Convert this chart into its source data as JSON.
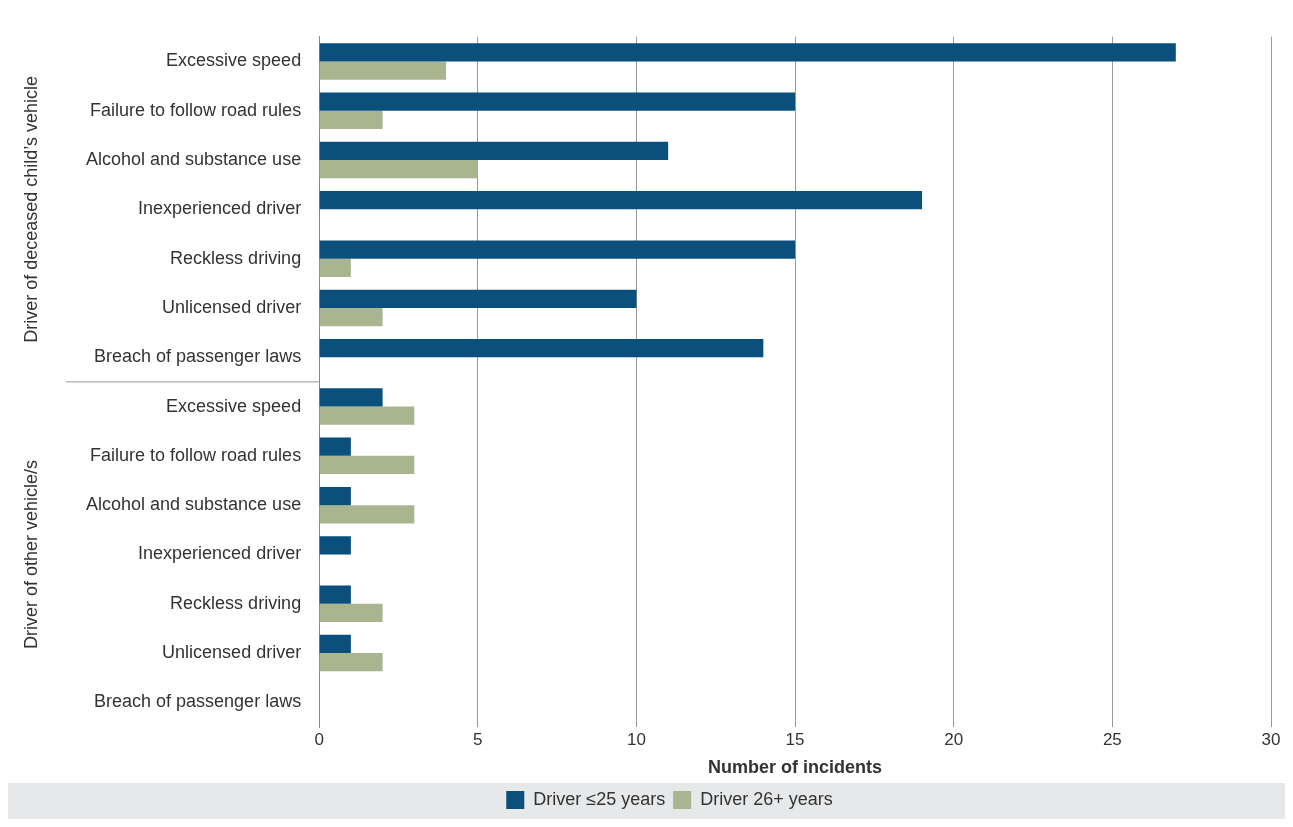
{
  "chart_data": {
    "type": "bar",
    "orientation": "horizontal",
    "xlabel": "Number of incidents",
    "categories": [
      "Excessive speed",
      "Failure to follow road rules",
      "Alcohol and substance use",
      "Inexperienced driver",
      "Reckless driving",
      "Unlicensed driver",
      "Breach of passenger laws",
      "Excessive speed",
      "Failure to follow road rules",
      "Alcohol and substance use",
      "Inexperienced driver",
      "Reckless driving",
      "Unlicensed driver",
      "Breach of passenger laws"
    ],
    "series": [
      {
        "name": "Driver ≤25 years",
        "color": "#0b4f7c",
        "values": [
          27,
          15,
          11,
          19,
          15,
          10,
          14,
          2,
          1,
          1,
          1,
          1,
          1,
          0
        ]
      },
      {
        "name": "Driver 26+ years",
        "color": "#a9b58f",
        "values": [
          4,
          2,
          5,
          0,
          1,
          2,
          0,
          3,
          3,
          3,
          0,
          2,
          2,
          0
        ]
      }
    ],
    "xlim": [
      0,
      30
    ],
    "xticks": [
      0,
      5,
      10,
      15,
      20,
      25,
      30
    ],
    "grid": "x",
    "legend": "bottom",
    "annotations": [
      "Driver of deceased child’s vehicle",
      "Driver of other vehicle/s"
    ]
  }
}
